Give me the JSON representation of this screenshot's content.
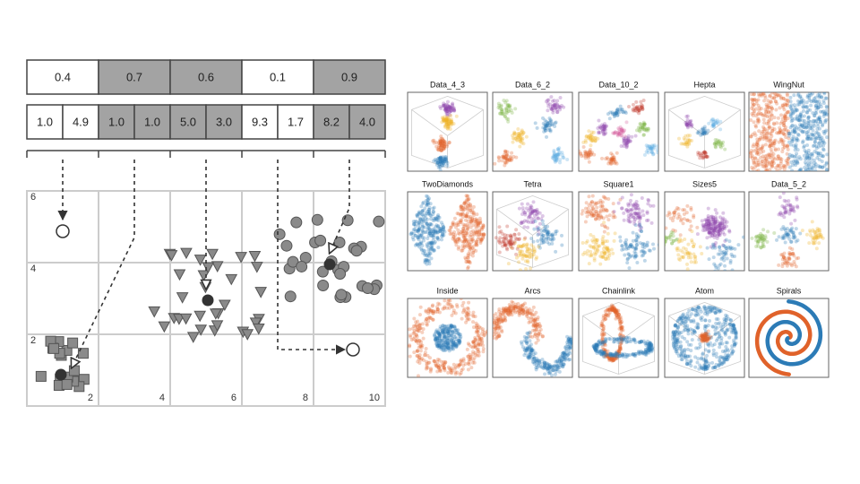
{
  "encoding": {
    "weights": [
      "0.4",
      "0.7",
      "0.6",
      "0.1",
      "0.9"
    ],
    "centers": [
      [
        "1.0",
        "4.9"
      ],
      [
        "1.0",
        "1.0"
      ],
      [
        "5.0",
        "3.0"
      ],
      [
        "9.3",
        "1.7"
      ],
      [
        "8.2",
        "4.0"
      ]
    ]
  },
  "plot": {
    "xlim": [
      0,
      10
    ],
    "ylim": [
      0,
      6
    ],
    "xticks": [
      2,
      4,
      6,
      8,
      10
    ],
    "yticks": [
      2,
      4,
      6
    ]
  },
  "datasets": [
    "Data_4_3",
    "Data_6_2",
    "Data_10_2",
    "Hepta",
    "WingNut",
    "TwoDiamonds",
    "Tetra",
    "Square1",
    "Sizes5",
    "Data_5_2",
    "Inside",
    "Arcs",
    "Chainlink",
    "Atom",
    "Spirals"
  ]
}
